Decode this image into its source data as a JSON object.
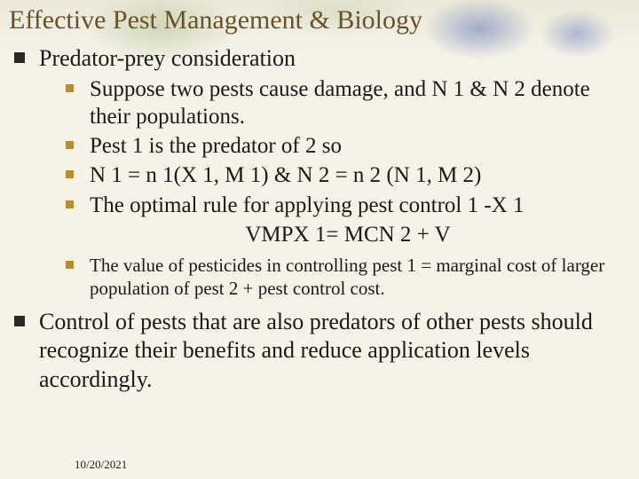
{
  "title": "Effective Pest Management & Biology",
  "lvl1": {
    "a": "Predator-prey consideration",
    "b": "Control of pests that are also predators of other pests should recognize their benefits and reduce application levels accordingly."
  },
  "lvl2": {
    "a": "Suppose two pests cause damage, and N 1  & N 2 denote  their populations.",
    "b": "Pest 1 is the predator of 2 so",
    "c": "N 1 = n 1(X 1, M 1)  & N 2 =  n 2 (N 1, M 2)",
    "d": "The optimal rule for applying pest control 1 -X 1",
    "d_center": "VMPX 1= MCN 2 + V",
    "e": "The value of pesticides in controlling pest 1 =  marginal cost of larger population of pest 2 + pest control cost."
  },
  "date": "10/20/2021",
  "colors": {
    "title": "#6b5028",
    "bullet_lvl1": "#2a2a2a",
    "bullet_lvl2": "#b88c2e",
    "text": "#1a1a1a",
    "background": "#f5f2e8"
  },
  "fonts": {
    "title_size": 30,
    "lvl1_size": 26,
    "lvl2_size": 25,
    "lvl2_small_size": 21,
    "date_size": 13,
    "family": "Times New Roman"
  }
}
